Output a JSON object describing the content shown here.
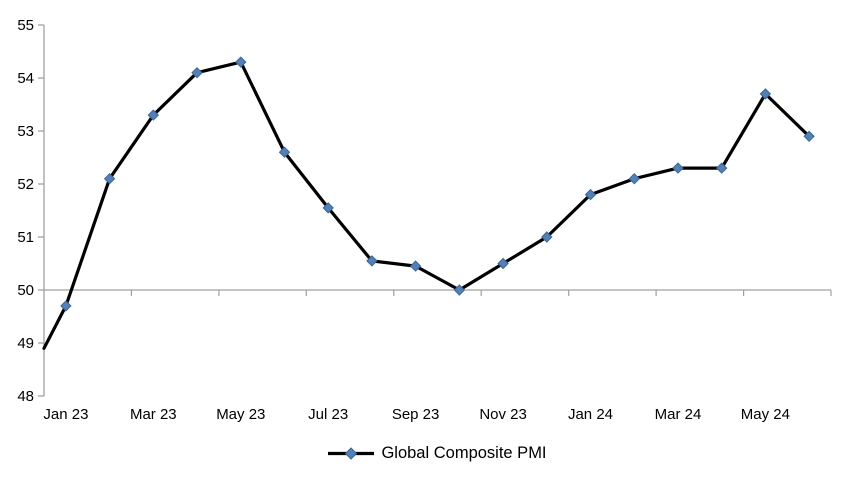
{
  "chart_data": {
    "type": "line",
    "title": "",
    "categories": [
      "Jan 23",
      "Feb 23",
      "Mar 23",
      "Apr 23",
      "May 23",
      "Jun 23",
      "Jul 23",
      "Aug 23",
      "Sep 23",
      "Oct 23",
      "Nov 23",
      "Dec 23",
      "Jan 24",
      "Feb 24",
      "Mar 24",
      "Apr 24",
      "May 24",
      "Jun 24"
    ],
    "series": [
      {
        "name": "Global Composite PMI",
        "values": [
          49.7,
          52.1,
          53.3,
          54.1,
          54.3,
          52.6,
          51.55,
          50.55,
          50.45,
          50.0,
          50.5,
          51.0,
          51.8,
          52.1,
          52.3,
          52.3,
          53.7,
          52.9
        ],
        "marker_shape": "diamond"
      }
    ],
    "edge_start_value": 48.9,
    "edge_start_note": "line enters plot at left axis edge at ~48.9 (prior point clipped, no marker)",
    "x_tick_labels": [
      "Jan 23",
      "Mar 23",
      "May 23",
      "Jul 23",
      "Sep 23",
      "Nov 23",
      "Jan 24",
      "Mar 24",
      "May 24"
    ],
    "x_tick_label_every_n_categories": 2,
    "y_ticks": [
      48,
      49,
      50,
      51,
      52,
      53,
      54,
      55
    ],
    "ylim": [
      48,
      55
    ],
    "axis_cross_value": 50,
    "grid": "off (single horizontal axis line at y=50, tick marks every 2 categories)",
    "legend": {
      "label": "Global Composite PMI",
      "position": "bottom-center"
    },
    "colors": {
      "series_line": "#000000",
      "marker_fill": "#4F81BD",
      "marker_edge": "#3A6793",
      "axis": "#A0A0A0",
      "text": "#000000",
      "background": "#FFFFFF"
    }
  }
}
